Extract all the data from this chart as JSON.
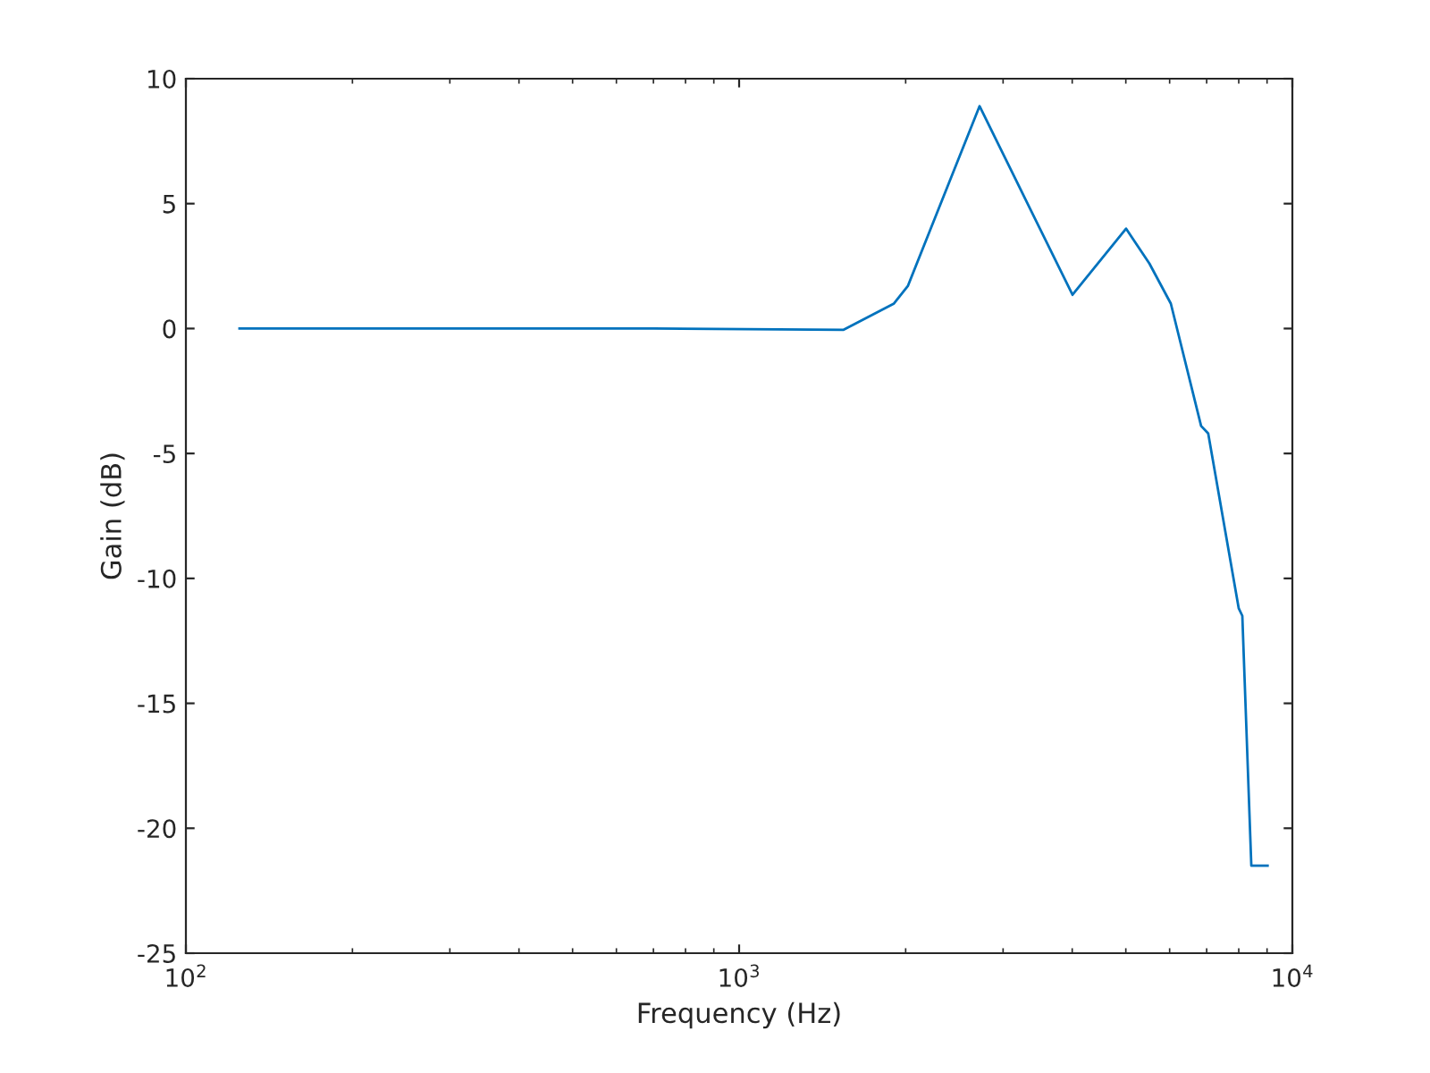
{
  "chart_data": {
    "type": "line",
    "xlabel": "Frequency (Hz)",
    "ylabel": "Gain (dB)",
    "log": "x",
    "xlim": [
      100,
      10000
    ],
    "xticks": [
      {
        "value": 100,
        "label": "10$^{2}$"
      },
      {
        "value": 1000,
        "label": "10$^{3}$"
      },
      {
        "value": 10000,
        "label": "10$^{4}$"
      }
    ],
    "ylim": [
      -25,
      10
    ],
    "yticks": [
      -25,
      -20,
      -15,
      -10,
      -5,
      0,
      5,
      10
    ],
    "grid": false,
    "marker": "none",
    "line_style": "solid",
    "series": [
      {
        "color": "#0072bd",
        "x": [
          125,
          700,
          1545,
          1905,
          2018,
          2720,
          4005,
          5006,
          5516,
          6030,
          6840,
          7045,
          8000,
          8120,
          8430,
          9020
        ],
        "values": [
          0,
          0,
          -0.05,
          1,
          1.7,
          8.9,
          1.35,
          4.0,
          2.6,
          1.0,
          -3.9,
          -4.2,
          -11.2,
          -11.5,
          -21.5,
          -21.5
        ]
      }
    ]
  }
}
